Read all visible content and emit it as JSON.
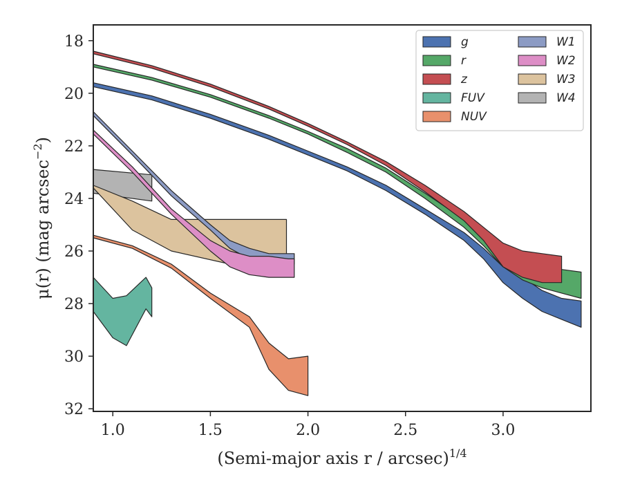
{
  "chart_data": {
    "type": "area",
    "title": "",
    "xlabel": "(Semi-major axis r / arcsec)1/4",
    "ylabel": "μ(r) (mag arcsec−2)",
    "xlim": [
      0.9,
      3.45
    ],
    "ylim": [
      32.1,
      17.4
    ],
    "y_inverted": true,
    "xticks": [
      1.0,
      1.5,
      2.0,
      2.5,
      3.0
    ],
    "xtick_labels": [
      "1.0",
      "1.5",
      "2.0",
      "2.5",
      "3.0"
    ],
    "yticks": [
      18,
      20,
      22,
      24,
      26,
      28,
      30,
      32
    ],
    "ytick_labels": [
      "18",
      "20",
      "22",
      "24",
      "26",
      "28",
      "30",
      "32"
    ],
    "grid": false,
    "legend_position": "top-right",
    "legend_columns": 2,
    "series": [
      {
        "name": "g",
        "color": "#4c72b0",
        "x": [
          0.9,
          1.2,
          1.5,
          1.8,
          2.0,
          2.2,
          2.4,
          2.6,
          2.8,
          2.9,
          3.0,
          3.1,
          3.2,
          3.3,
          3.4
        ],
        "y_upper": [
          19.6,
          20.1,
          20.8,
          21.6,
          22.2,
          22.8,
          23.5,
          24.4,
          25.3,
          25.9,
          26.6,
          27.0,
          27.5,
          27.8,
          27.9
        ],
        "y_lower": [
          19.75,
          20.25,
          20.95,
          21.75,
          22.35,
          22.95,
          23.7,
          24.6,
          25.6,
          26.3,
          27.2,
          27.8,
          28.3,
          28.6,
          28.9
        ]
      },
      {
        "name": "r",
        "color": "#55a868",
        "x": [
          0.9,
          1.2,
          1.5,
          1.8,
          2.0,
          2.2,
          2.4,
          2.6,
          2.8,
          2.9,
          3.0,
          3.1,
          3.2,
          3.3,
          3.4
        ],
        "y_upper": [
          18.9,
          19.4,
          20.05,
          20.85,
          21.45,
          22.1,
          22.85,
          23.8,
          24.8,
          25.4,
          26.0,
          26.4,
          26.6,
          26.7,
          26.8
        ],
        "y_lower": [
          19.0,
          19.5,
          20.15,
          20.95,
          21.55,
          22.25,
          23.0,
          24.0,
          25.1,
          25.8,
          26.6,
          27.1,
          27.4,
          27.6,
          27.8
        ]
      },
      {
        "name": "z",
        "color": "#c44e52",
        "x": [
          0.9,
          1.2,
          1.5,
          1.8,
          2.0,
          2.2,
          2.4,
          2.6,
          2.8,
          2.9,
          3.0,
          3.1,
          3.2,
          3.3
        ],
        "y_upper": [
          18.4,
          18.95,
          19.65,
          20.5,
          21.15,
          21.85,
          22.6,
          23.5,
          24.5,
          25.1,
          25.7,
          26.0,
          26.1,
          26.2
        ],
        "y_lower": [
          18.5,
          19.05,
          19.75,
          20.6,
          21.25,
          21.95,
          22.75,
          23.75,
          24.85,
          25.6,
          26.6,
          27.0,
          27.2,
          27.2
        ]
      },
      {
        "name": "FUV",
        "color": "#64b5a0",
        "x": [
          0.9,
          1.0,
          1.07,
          1.17,
          1.2
        ],
        "y_upper": [
          27.0,
          27.8,
          27.7,
          27.0,
          27.4
        ],
        "y_lower": [
          28.3,
          29.3,
          29.6,
          28.2,
          28.5
        ]
      },
      {
        "name": "NUV",
        "color": "#e8906c",
        "x": [
          0.9,
          1.1,
          1.3,
          1.5,
          1.7,
          1.8,
          1.9,
          2.0
        ],
        "y_upper": [
          25.4,
          25.8,
          26.5,
          27.6,
          28.5,
          29.5,
          30.1,
          30.0
        ],
        "y_lower": [
          25.5,
          25.9,
          26.65,
          27.8,
          28.9,
          30.5,
          31.3,
          31.5
        ]
      },
      {
        "name": "W1",
        "color": "#8c9bc4",
        "x": [
          0.9,
          1.1,
          1.3,
          1.5,
          1.6,
          1.7,
          1.8,
          1.9,
          1.93
        ],
        "y_upper": [
          20.7,
          22.2,
          23.7,
          25.0,
          25.6,
          25.9,
          26.1,
          26.1,
          26.1
        ],
        "y_lower": [
          20.85,
          22.35,
          23.9,
          25.2,
          25.9,
          26.3,
          26.6,
          26.5,
          26.5
        ]
      },
      {
        "name": "W2",
        "color": "#dd8ec6",
        "x": [
          0.9,
          1.1,
          1.3,
          1.5,
          1.6,
          1.7,
          1.8,
          1.9,
          1.93
        ],
        "y_upper": [
          21.4,
          22.8,
          24.4,
          25.6,
          26.0,
          26.2,
          26.2,
          26.3,
          26.3
        ],
        "y_lower": [
          21.55,
          23.0,
          24.6,
          26.0,
          26.6,
          26.9,
          27.0,
          27.0,
          27.0
        ]
      },
      {
        "name": "W3",
        "color": "#dcc39e",
        "x": [
          0.9,
          1.1,
          1.3,
          1.6,
          1.89
        ],
        "y_upper": [
          23.5,
          24.1,
          24.8,
          24.8,
          24.8
        ],
        "y_lower": [
          23.6,
          25.2,
          26.0,
          26.5,
          26.3
        ]
      },
      {
        "name": "W4",
        "color": "#b3b3b3",
        "x": [
          0.9,
          1.2
        ],
        "y_upper": [
          22.9,
          23.1
        ],
        "y_lower": [
          23.8,
          24.1
        ]
      }
    ]
  }
}
